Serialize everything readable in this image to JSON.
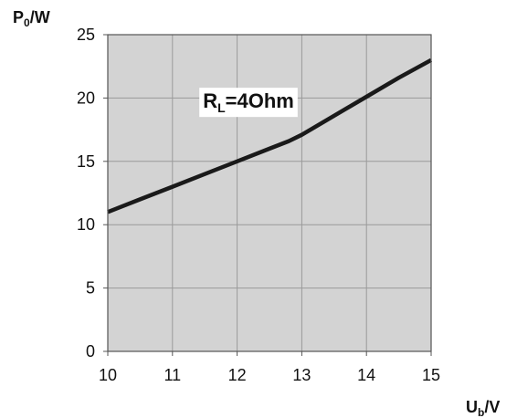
{
  "chart_data": {
    "type": "line",
    "xlabel": {
      "main": "U",
      "sub": "b",
      "unit": "/V"
    },
    "ylabel": {
      "main": "P",
      "sub": "0",
      "unit": "/W"
    },
    "xlim": [
      10,
      15
    ],
    "ylim": [
      0,
      25
    ],
    "x_ticks": [
      10,
      11,
      12,
      13,
      14,
      15
    ],
    "y_ticks": [
      0,
      5,
      10,
      15,
      20,
      25
    ],
    "grid": true,
    "series": [
      {
        "x": [
          10,
          10.5,
          11,
          11.5,
          12,
          12.5,
          12.8,
          13.0,
          13.2,
          13.5,
          14,
          14.5,
          15
        ],
        "y": [
          11,
          12,
          13,
          14,
          15,
          16,
          16.6,
          17.1,
          17.7,
          18.6,
          20.1,
          21.6,
          23
        ],
        "color": "#1a1a1a"
      }
    ],
    "annotation": {
      "main": "R",
      "sub": "L",
      "rest": "=4Ohm",
      "x": 11.5,
      "y": 19.8
    },
    "plot_background": "#d3d3d3",
    "grid_color": "#9a9a9a"
  }
}
